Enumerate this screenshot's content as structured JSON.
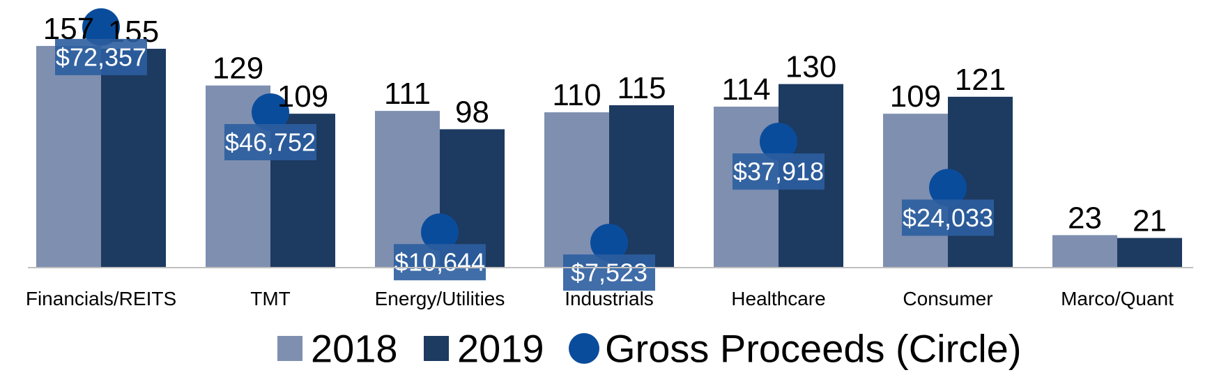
{
  "chart_data": {
    "type": "bar",
    "categories": [
      "Financials/REITS",
      "TMT",
      "Energy/Utilities",
      "Industrials",
      "Healthcare",
      "Consumer",
      "Marco/Quant"
    ],
    "series": [
      {
        "name": "2018",
        "values": [
          157,
          129,
          111,
          110,
          114,
          109,
          23
        ]
      },
      {
        "name": "2019",
        "values": [
          155,
          109,
          98,
          115,
          130,
          121,
          21
        ]
      }
    ],
    "overlay": {
      "name": "Gross Proceeds (Circle)",
      "type": "scatter",
      "values": [
        72357,
        46752,
        10644,
        7523,
        37918,
        24033,
        null
      ],
      "labels": [
        "$72,357",
        "$46,752",
        "$10,644",
        "$7,523",
        "$37,918",
        "$24,033",
        ""
      ]
    },
    "ylim": [
      0,
      160
    ],
    "overlay_ylim": [
      0,
      80000
    ],
    "grid": false,
    "legend_position": "bottom",
    "colors": {
      "2018": "#7f8fb0",
      "2019": "#1d3a60",
      "circle": "#0a4c9c",
      "label_box": "#2c5ea0",
      "axis": "#bfbfbf"
    }
  },
  "legend": [
    {
      "label": "2018",
      "shape": "square",
      "color": "#7f8fb0"
    },
    {
      "label": "2019",
      "shape": "square",
      "color": "#1d3a60"
    },
    {
      "label": "Gross Proceeds (Circle)",
      "shape": "circle",
      "color": "#0a4c9c"
    }
  ]
}
